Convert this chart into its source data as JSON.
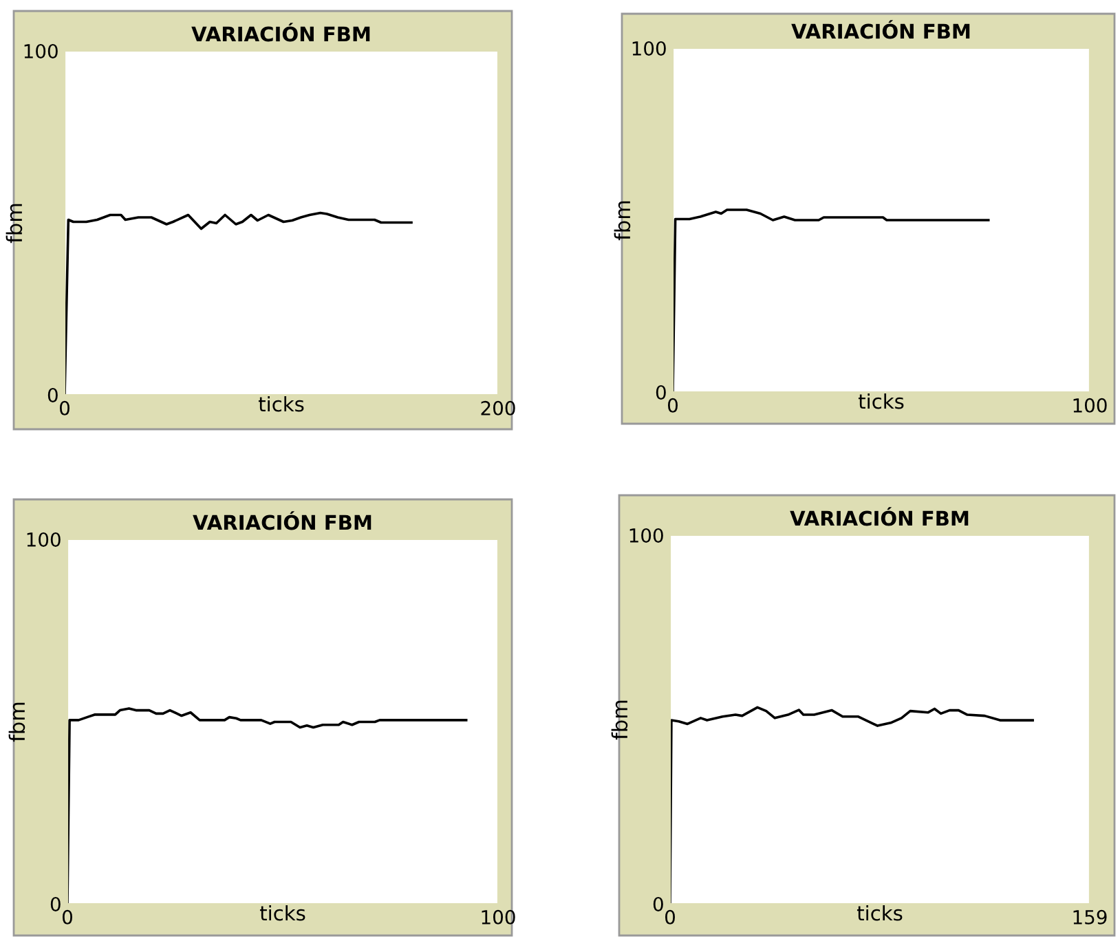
{
  "chart_data": [
    {
      "type": "line",
      "title": "VARIACIÓN FBM",
      "xlabel": "ticks",
      "ylabel": "fbm",
      "xlim": [
        0,
        200
      ],
      "ylim": [
        0,
        100
      ],
      "xticks": [
        0,
        200
      ],
      "yticks": [
        0,
        100
      ],
      "series": [
        {
          "color": "#000000",
          "x": [
            0,
            1.7,
            4,
            10,
            15,
            21,
            26,
            28,
            34,
            40,
            47,
            50,
            57,
            63,
            67,
            70,
            74,
            79,
            82,
            86,
            89,
            94,
            101,
            105,
            109,
            113,
            118,
            121,
            126,
            131,
            143,
            146,
            160
          ],
          "values": [
            0,
            50.9,
            50.3,
            50.3,
            50.9,
            52.3,
            52.3,
            50.9,
            51.6,
            51.6,
            49.6,
            50.3,
            52.3,
            48.3,
            50.3,
            49.9,
            52.3,
            49.6,
            50.3,
            52.3,
            50.7,
            52.3,
            50.3,
            50.7,
            51.6,
            52.3,
            52.9,
            52.6,
            51.6,
            50.9,
            50.9,
            50.1,
            50.1
          ]
        }
      ]
    },
    {
      "type": "line",
      "title": "VARIACIÓN FBM",
      "xlabel": "ticks",
      "ylabel": "fbm",
      "xlim": [
        0,
        100
      ],
      "ylim": [
        0,
        100
      ],
      "xticks": [
        0,
        100
      ],
      "yticks": [
        0,
        100
      ],
      "series": [
        {
          "color": "#000000",
          "x": [
            0,
            0.6,
            4,
            6.6,
            10.3,
            11.6,
            13,
            17.7,
            21,
            24,
            26.7,
            29.3,
            35,
            36.2,
            50.4,
            51.3,
            75.7
          ],
          "values": [
            0,
            50.3,
            50.3,
            51,
            52.4,
            51.9,
            53,
            53,
            51.9,
            50,
            51,
            50,
            50,
            50.8,
            50.8,
            50,
            50
          ]
        }
      ]
    },
    {
      "type": "line",
      "title": "VARIACIÓN FBM",
      "xlabel": "ticks",
      "ylabel": "fbm",
      "xlim": [
        0,
        100
      ],
      "ylim": [
        0,
        100
      ],
      "xticks": [
        0,
        100
      ],
      "yticks": [
        0,
        100
      ],
      "series": [
        {
          "color": "#000000",
          "x": [
            0,
            0.5,
            2.6,
            4.8,
            6.3,
            11.1,
            12.2,
            14.3,
            15.9,
            19,
            20.6,
            22.2,
            23.8,
            26.5,
            28.6,
            30.7,
            36.5,
            37.6,
            39.2,
            40.2,
            45,
            47.1,
            48.1,
            51.9,
            54,
            55.6,
            57.1,
            59.3,
            63,
            64,
            66.1,
            67.7,
            71.4,
            72.5,
            92.6
          ],
          "values": [
            0,
            50.4,
            50.4,
            51.3,
            51.9,
            51.9,
            53.1,
            53.6,
            53.1,
            53.1,
            52.2,
            52.2,
            53.1,
            51.6,
            52.5,
            50.4,
            50.4,
            51.2,
            50.9,
            50.4,
            50.4,
            49.4,
            49.9,
            49.9,
            48.4,
            48.9,
            48.4,
            49.1,
            49.1,
            49.9,
            49.1,
            49.9,
            49.9,
            50.4,
            50.4
          ]
        }
      ]
    },
    {
      "type": "line",
      "title": "VARIACIÓN FBM",
      "xlabel": "ticks",
      "ylabel": "fbm",
      "xlim": [
        0,
        159
      ],
      "ylim": [
        0,
        100
      ],
      "xticks": [
        0,
        159
      ],
      "yticks": [
        0,
        100
      ],
      "series": [
        {
          "color": "#000000",
          "x": [
            0,
            0.5,
            3.3,
            6.6,
            11.6,
            14,
            19.9,
            24.8,
            27.3,
            33.1,
            36.4,
            39.7,
            44.7,
            48.8,
            50.5,
            54.6,
            61.3,
            65.4,
            71.2,
            78.6,
            83.6,
            87.7,
            91,
            97.7,
            100.2,
            102.6,
            105.9,
            109.3,
            112.6,
            119.2,
            125,
            137.4
          ],
          "values": [
            0,
            49.8,
            49.5,
            48.8,
            50.4,
            49.8,
            50.8,
            51.3,
            51,
            53.3,
            52.3,
            50.4,
            51.3,
            52.6,
            51.3,
            51.3,
            52.5,
            50.8,
            50.8,
            48.3,
            49.1,
            50.4,
            52.3,
            51.9,
            52.9,
            51.6,
            52.5,
            52.5,
            51.3,
            51,
            49.8,
            49.8
          ]
        }
      ]
    }
  ]
}
